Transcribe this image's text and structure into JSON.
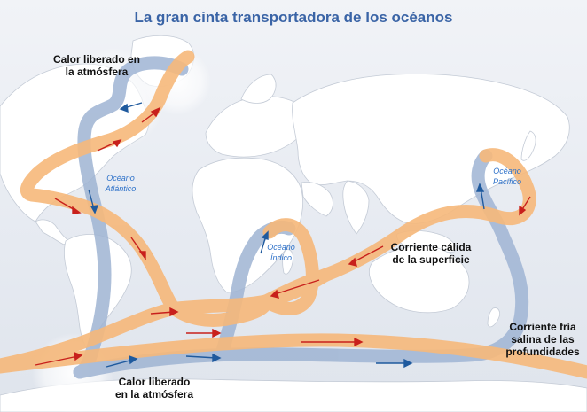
{
  "title": "La gran cinta transportadora de los océanos",
  "oceans": {
    "atlantic": [
      "Océano",
      "Atlántico"
    ],
    "indian": [
      "Océano",
      "Índico"
    ],
    "pacific": [
      "Océano",
      "Pacífico"
    ]
  },
  "annotations": {
    "heat_north": [
      "Calor liberado en",
      "la atmósfera"
    ],
    "heat_south": [
      "Calor liberado",
      "en la atmósfera"
    ],
    "warm_current": [
      "Corriente cálida",
      "de la superficie"
    ],
    "cold_current": [
      "Corriente fría",
      "salina de las",
      "profundidades"
    ]
  },
  "colors": {
    "warm_current": "#f6b87a",
    "cold_current": "#9fb4d3",
    "warm_arrow": "#c8201c",
    "cold_arrow": "#1f5a9e",
    "land": "#ffffff",
    "ocean": "#e9edf3",
    "title": "#3a64a6"
  }
}
